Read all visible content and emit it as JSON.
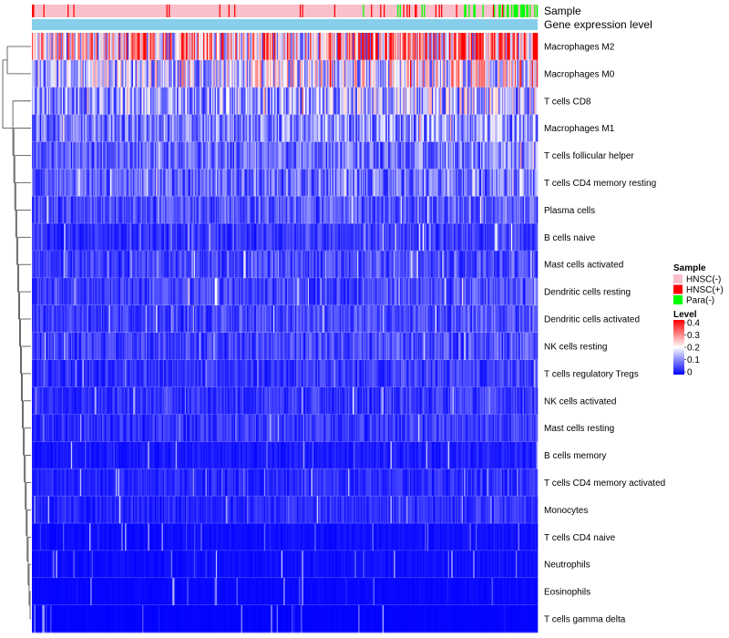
{
  "chart_data": {
    "type": "heatmap",
    "title": "",
    "annotation_tracks": [
      "Sample",
      "Gene expression level"
    ],
    "rows": [
      {
        "name": "Macrophages M2",
        "mean": 0.24
      },
      {
        "name": "Macrophages M0",
        "mean": 0.17
      },
      {
        "name": "T cells CD8",
        "mean": 0.13
      },
      {
        "name": "Macrophages M1",
        "mean": 0.1
      },
      {
        "name": "T cells follicular helper",
        "mean": 0.08
      },
      {
        "name": "T cells CD4 memory resting",
        "mean": 0.08
      },
      {
        "name": "Plasma cells",
        "mean": 0.06
      },
      {
        "name": "B cells naive",
        "mean": 0.04
      },
      {
        "name": "Mast cells activated",
        "mean": 0.05
      },
      {
        "name": "Dendritic cells resting",
        "mean": 0.05
      },
      {
        "name": "Dendritic cells activated",
        "mean": 0.05
      },
      {
        "name": "NK cells resting",
        "mean": 0.05
      },
      {
        "name": "T cells regulatory  Tregs",
        "mean": 0.04
      },
      {
        "name": "NK cells activated",
        "mean": 0.04
      },
      {
        "name": "Mast cells resting",
        "mean": 0.04
      },
      {
        "name": "B cells memory",
        "mean": 0.02
      },
      {
        "name": "T cells CD4 memory activated",
        "mean": 0.03
      },
      {
        "name": "Monocytes",
        "mean": 0.03
      },
      {
        "name": "T cells CD4 naive",
        "mean": 0.01
      },
      {
        "name": "Neutrophils",
        "mean": 0.01
      },
      {
        "name": "Eosinophils",
        "mean": 0.005
      },
      {
        "name": "T cells gamma delta",
        "mean": 0.002
      }
    ],
    "n_samples": 440,
    "sample_groups": [
      {
        "name": "HNSC(-)",
        "color": "#F9C0CB"
      },
      {
        "name": "HNSC(+)",
        "color": "#FF0000"
      },
      {
        "name": "Para(-)",
        "color": "#00FF00"
      }
    ],
    "expression_track_color": "#87CEEB",
    "color_scale": {
      "title": "Level",
      "min": 0,
      "max": 0.4,
      "ticks": [
        "0",
        "0.1",
        "0.2",
        "0.3",
        "0.4"
      ],
      "low_color": "#0000FF",
      "mid_color": "#FFFFFF",
      "high_color": "#FF0000",
      "mid_value": 0.2
    },
    "dendrogram": "left, rows clustered",
    "legend_position": "right"
  },
  "legend": {
    "sample_title": "Sample",
    "level_title": "Level"
  }
}
